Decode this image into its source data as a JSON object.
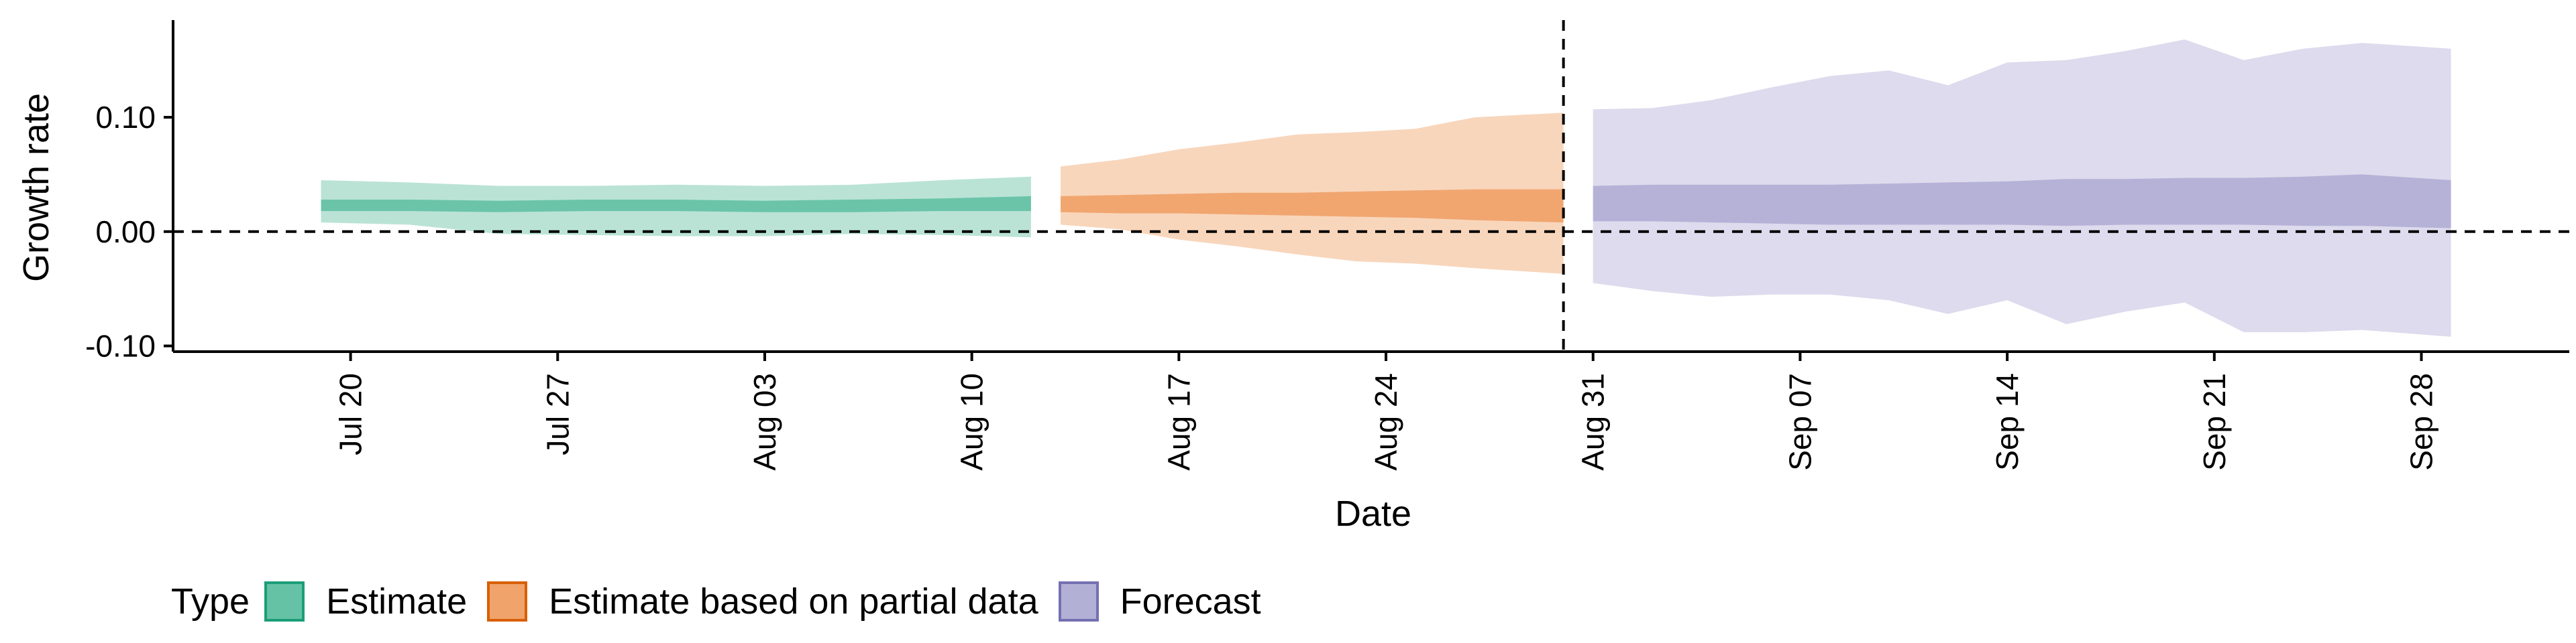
{
  "chart_data": {
    "type": "area",
    "xlabel": "Date",
    "ylabel": "Growth rate",
    "ylim": [
      -0.105,
      0.185
    ],
    "xlim": [
      "2020-07-14",
      "2020-10-03"
    ],
    "yticks": [
      -0.1,
      0.0,
      0.1
    ],
    "ytick_labels": [
      "-0.10",
      "0.00",
      "0.10"
    ],
    "xticks": [
      "2020-07-20",
      "2020-07-27",
      "2020-08-03",
      "2020-08-10",
      "2020-08-17",
      "2020-08-24",
      "2020-08-31",
      "2020-09-07",
      "2020-09-14",
      "2020-09-21",
      "2020-09-28"
    ],
    "xtick_labels": [
      "Jul 20",
      "Jul 27",
      "Aug 03",
      "Aug 10",
      "Aug 17",
      "Aug 24",
      "Aug 31",
      "Sep 07",
      "Sep 14",
      "Sep 21",
      "Sep 28"
    ],
    "reference_lines": {
      "y": 0.0,
      "x": "2020-08-30"
    },
    "legend": {
      "title": "Type",
      "position": "bottom"
    },
    "series": [
      {
        "name": "Estimate",
        "fill": "#66c2a5",
        "border": "#1b9e77",
        "x": [
          "2020-07-19",
          "2020-07-22",
          "2020-07-25",
          "2020-07-28",
          "2020-07-31",
          "2020-08-03",
          "2020-08-06",
          "2020-08-09",
          "2020-08-12"
        ],
        "outer_upper": [
          0.045,
          0.043,
          0.04,
          0.04,
          0.041,
          0.04,
          0.041,
          0.045,
          0.048
        ],
        "outer_lower": [
          0.008,
          0.006,
          -0.002,
          -0.003,
          -0.004,
          -0.004,
          -0.002,
          -0.003,
          -0.005
        ],
        "inner_upper": [
          0.028,
          0.028,
          0.027,
          0.028,
          0.028,
          0.027,
          0.028,
          0.029,
          0.031
        ],
        "inner_lower": [
          0.018,
          0.018,
          0.017,
          0.018,
          0.018,
          0.017,
          0.017,
          0.018,
          0.018
        ]
      },
      {
        "name": "Estimate based on partial data",
        "fill": "#f0a36b",
        "border": "#d95f02",
        "x": [
          "2020-08-13",
          "2020-08-15",
          "2020-08-17",
          "2020-08-19",
          "2020-08-21",
          "2020-08-23",
          "2020-08-25",
          "2020-08-27",
          "2020-08-30"
        ],
        "outer_upper": [
          0.057,
          0.063,
          0.072,
          0.078,
          0.085,
          0.087,
          0.09,
          0.1,
          0.104
        ],
        "outer_lower": [
          0.006,
          0.002,
          -0.007,
          -0.013,
          -0.02,
          -0.026,
          -0.028,
          -0.032,
          -0.037
        ],
        "inner_upper": [
          0.031,
          0.032,
          0.033,
          0.034,
          0.034,
          0.035,
          0.036,
          0.037,
          0.037
        ],
        "inner_lower": [
          0.017,
          0.016,
          0.016,
          0.015,
          0.014,
          0.013,
          0.012,
          0.01,
          0.008
        ]
      },
      {
        "name": "Forecast",
        "fill": "#b3b0d6",
        "border": "#7570b3",
        "x": [
          "2020-08-31",
          "2020-09-02",
          "2020-09-04",
          "2020-09-06",
          "2020-09-08",
          "2020-09-10",
          "2020-09-12",
          "2020-09-14",
          "2020-09-16",
          "2020-09-18",
          "2020-09-20",
          "2020-09-22",
          "2020-09-24",
          "2020-09-26",
          "2020-09-29"
        ],
        "outer_upper": [
          0.107,
          0.108,
          0.115,
          0.126,
          0.136,
          0.141,
          0.128,
          0.148,
          0.15,
          0.158,
          0.168,
          0.15,
          0.16,
          0.165,
          0.16
        ],
        "outer_lower": [
          -0.045,
          -0.052,
          -0.057,
          -0.055,
          -0.055,
          -0.06,
          -0.072,
          -0.06,
          -0.081,
          -0.07,
          -0.062,
          -0.088,
          -0.088,
          -0.086,
          -0.092
        ],
        "inner_upper": [
          0.04,
          0.041,
          0.041,
          0.041,
          0.041,
          0.042,
          0.043,
          0.044,
          0.046,
          0.046,
          0.047,
          0.047,
          0.048,
          0.05,
          0.045
        ],
        "inner_lower": [
          0.009,
          0.009,
          0.008,
          0.007,
          0.006,
          0.006,
          0.006,
          0.006,
          0.005,
          0.006,
          0.006,
          0.006,
          0.005,
          0.005,
          0.003
        ]
      }
    ]
  }
}
